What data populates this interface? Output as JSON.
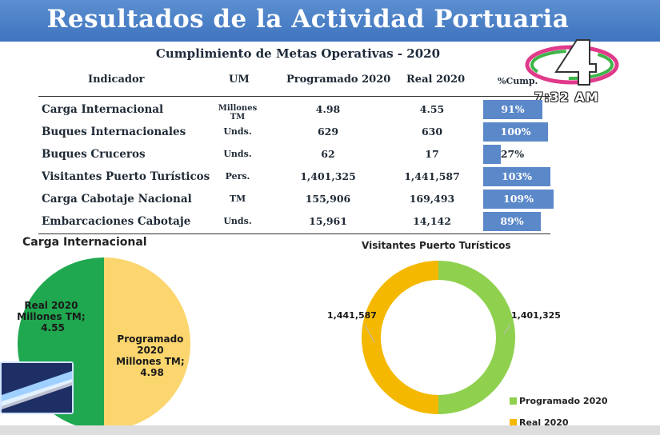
{
  "header": {
    "title": "Resultados de la Actividad Portuaria"
  },
  "table": {
    "subtitle": "Cumplimiento de Metas Operativas - 2020",
    "columns": [
      "Indicador",
      "UM",
      "Programado 2020",
      "Real 2020",
      "%Cump."
    ],
    "rows": [
      {
        "indicador": "Carga Internacional",
        "um": "Millones TM",
        "programado": "4.98",
        "real": "4.55",
        "cump": "91%",
        "cump_value": 91
      },
      {
        "indicador": "Buques  Internacionales",
        "um": "Unds.",
        "programado": "629",
        "real": "630",
        "cump": "100%",
        "cump_value": 100
      },
      {
        "indicador": "Buques Cruceros",
        "um": "Unds.",
        "programado": "62",
        "real": "17",
        "cump": "27%",
        "cump_value": 27
      },
      {
        "indicador": "Visitantes Puerto Turísticos",
        "um": "Pers.",
        "programado": "1,401,325",
        "real": "1,441,587",
        "cump": "103%",
        "cump_value": 103
      },
      {
        "indicador": "Carga Cabotaje Nacional",
        "um": "TM",
        "programado": "155,906",
        "real": "169,493",
        "cump": "109%",
        "cump_value": 109
      },
      {
        "indicador": "Embarcaciones Cabotaje",
        "um": "Unds.",
        "programado": "15,961",
        "real": "14,142",
        "cump": "89%",
        "cump_value": 89
      }
    ]
  },
  "overlay": {
    "channel_logo_text": "4",
    "time": "7:32 AM"
  },
  "pie_chart": {
    "title": "Carga Internacional",
    "slices": [
      {
        "label_line1": "Real 2020",
        "label_line2": "Millones TM;",
        "label_line3": "4.55",
        "value": 4.55,
        "color": "#1fa84f"
      },
      {
        "label_line1": "Programado",
        "label_line2": "2020",
        "label_line3": "Millones TM;",
        "label_line4": "4.98",
        "value": 4.98,
        "color": "#fbd66e"
      }
    ]
  },
  "donut_chart": {
    "title": "Visitantes Puerto Turísticos",
    "label_left": "1,441,587",
    "label_right": "1,401,325",
    "slices": [
      {
        "name": "Programado 2020",
        "value": 1401325,
        "color": "#8fd14f"
      },
      {
        "name": "Real 2020",
        "value": 1441587,
        "color": "#f5b800"
      }
    ],
    "legend": [
      "Programado 2020",
      "Real 2020"
    ]
  }
}
